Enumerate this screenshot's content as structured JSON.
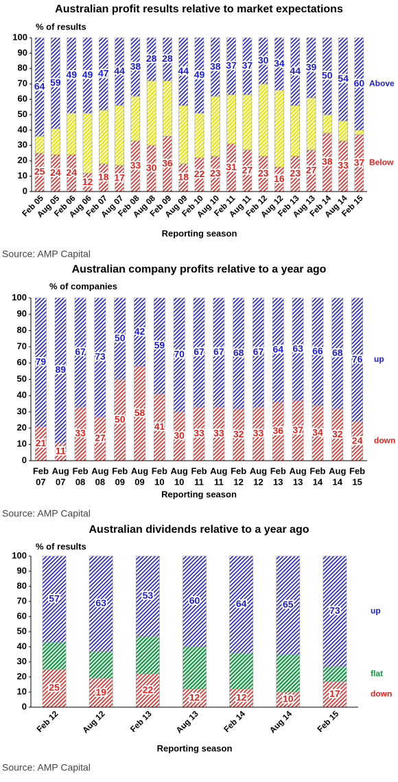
{
  "chart_data": [
    {
      "type": "bar",
      "stacked": true,
      "rotated_labels": true,
      "title": "Australian profit results relative to market expectations",
      "y_label": "% of results",
      "x_label": "Reporting season",
      "source": "Source: AMP Capital",
      "categories": [
        "Feb 05",
        "Aug 05",
        "Feb 06",
        "Aug 06",
        "Feb 07",
        "Aug 07",
        "Feb 08",
        "Aug 08",
        "Feb 09",
        "Aug 09",
        "Feb 10",
        "Aug 10",
        "Feb 11",
        "Aug 11",
        "Feb 12",
        "Aug 12",
        "Feb 13",
        "Aug 13",
        "Feb 14",
        "Aug 14",
        "Feb 15"
      ],
      "series": [
        {
          "name": "Below",
          "color": "#e8211c",
          "labeled": true,
          "values": [
            25,
            24,
            24,
            12,
            18,
            17,
            33,
            30,
            36,
            18,
            22,
            23,
            31,
            27,
            23,
            16,
            23,
            27,
            38,
            33,
            37
          ]
        },
        {
          "color": "#e6e600",
          "labeled": false,
          "values": [
            11,
            17,
            27,
            39,
            35,
            39,
            29,
            42,
            36,
            38,
            29,
            39,
            32,
            36,
            47,
            50,
            33,
            34,
            12,
            13,
            3
          ]
        },
        {
          "name": "Above",
          "color": "#1a1ae0",
          "labeled": true,
          "values": [
            64,
            59,
            49,
            49,
            47,
            44,
            38,
            28,
            28,
            44,
            49,
            38,
            37,
            37,
            30,
            34,
            44,
            39,
            50,
            54,
            60
          ]
        }
      ],
      "ylim": [
        0,
        100
      ],
      "yticks": [
        0,
        10,
        20,
        30,
        40,
        50,
        60,
        70,
        80,
        90,
        100
      ]
    },
    {
      "type": "bar",
      "stacked": true,
      "rotated_labels": false,
      "title": "Australian company profits relative to a year ago",
      "y_label": "% of companies",
      "x_label": "Reporting season",
      "source": "Source: AMP Capital",
      "categories": [
        [
          "Feb",
          "07"
        ],
        [
          "Aug",
          "07"
        ],
        [
          "Feb",
          "08"
        ],
        [
          "Aug",
          "08"
        ],
        [
          "Feb",
          "09"
        ],
        [
          "Aug",
          "09"
        ],
        [
          "Feb",
          "10"
        ],
        [
          "Aug",
          "10"
        ],
        [
          "Feb",
          "11"
        ],
        [
          "Aug",
          "11"
        ],
        [
          "Feb",
          "12"
        ],
        [
          "Aug",
          "12"
        ],
        [
          "Feb",
          "13"
        ],
        [
          "Aug",
          "13"
        ],
        [
          "Feb",
          "14"
        ],
        [
          "Aug",
          "14"
        ],
        [
          "Feb",
          "15"
        ]
      ],
      "series": [
        {
          "name": "down",
          "color": "#e8211c",
          "labeled": true,
          "values": [
            21,
            11,
            33,
            27,
            50,
            58,
            41,
            30,
            33,
            33,
            32,
            33,
            36,
            37,
            34,
            32,
            24
          ]
        },
        {
          "name": "up",
          "color": "#1a1ae0",
          "labeled": true,
          "values": [
            79,
            89,
            67,
            73,
            50,
            42,
            59,
            70,
            67,
            67,
            68,
            67,
            64,
            63,
            66,
            68,
            76
          ]
        }
      ],
      "ylim": [
        0,
        100
      ],
      "yticks": [
        0,
        10,
        20,
        30,
        40,
        50,
        60,
        70,
        80,
        90,
        100
      ]
    },
    {
      "type": "bar",
      "stacked": true,
      "rotated_labels": true,
      "title": "Australian dividends relative to a year ago",
      "y_label": "% of results",
      "x_label": "Reporting season",
      "source": "Source: AMP Capital",
      "categories": [
        "Feb 12",
        "Aug 12",
        "Feb 13",
        "Aug 13",
        "Feb 14",
        "Aug 14",
        "Feb 15"
      ],
      "series": [
        {
          "name": "down",
          "color": "#e8211c",
          "labeled": true,
          "values": [
            25,
            19,
            22,
            12,
            12,
            10,
            17
          ]
        },
        {
          "name": "flat",
          "color": "#0a9a3c",
          "labeled": false,
          "values": [
            18,
            18,
            25,
            28,
            24,
            25,
            10
          ]
        },
        {
          "name": "up",
          "color": "#1a1ae0",
          "labeled": true,
          "values": [
            57,
            63,
            53,
            60,
            64,
            65,
            73
          ]
        }
      ],
      "ylim": [
        0,
        100
      ],
      "yticks": [
        0,
        10,
        20,
        30,
        40,
        50,
        60,
        70,
        80,
        90,
        100
      ]
    }
  ]
}
